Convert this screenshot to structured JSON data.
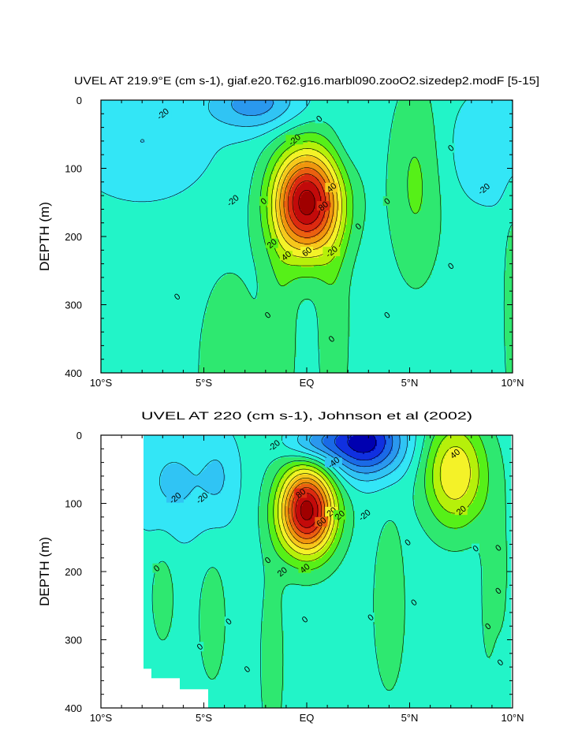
{
  "chart_data": [
    {
      "type": "contour",
      "title": "UVEL AT 219.9°E (cm s-1), giaf.e20.T62.g16.marbl090.zooO2.sizedep2.modF [5-15]",
      "ylabel": "DEPTH (m)",
      "xlabel": "",
      "x_ticks": [
        "10°S",
        "5°S",
        "EQ",
        "5°N",
        "10°N"
      ],
      "x_tick_values": [
        -10,
        -5,
        0,
        5,
        10
      ],
      "y_ticks": [
        "0",
        "100",
        "200",
        "300",
        "400"
      ],
      "y_tick_values": [
        0,
        100,
        200,
        300,
        400
      ],
      "xlim": [
        -10,
        10
      ],
      "ylim": [
        0,
        400
      ],
      "contour_interval": 10,
      "color_levels": [
        -60,
        -50,
        -40,
        -30,
        -20,
        -10,
        0,
        10,
        20,
        30,
        40,
        50,
        60,
        70,
        80,
        90
      ],
      "features": [
        {
          "name": "background flow",
          "value": -5
        },
        {
          "name": "equatorial undercurrent core",
          "lat": 0,
          "depth": 150,
          "value": 95
        },
        {
          "name": "surface westward jet",
          "lat": -2.5,
          "depth": 5,
          "value": -35
        },
        {
          "name": "eastward band 5N",
          "lat": 5.3,
          "depth": 120,
          "value": 12
        },
        {
          "name": "westward region south",
          "lat": -8,
          "depth": 60,
          "value": -18
        },
        {
          "name": "westward region north",
          "lat": 9,
          "depth": 80,
          "value": -18
        },
        {
          "name": "deep eastward tongue south",
          "lat": -4,
          "depth": 380,
          "value": 8
        },
        {
          "name": "deep eastward south of equator",
          "lat": -1.5,
          "depth": 330,
          "value": 8
        },
        {
          "name": "deep eastward north of equator",
          "lat": 1.5,
          "depth": 330,
          "value": 8
        },
        {
          "name": "weak eastward strip 10N",
          "lat": 10,
          "depth": 300,
          "value": 3
        }
      ],
      "contour_labels": [
        {
          "text": "-20",
          "lat": -7.0,
          "depth": 20
        },
        {
          "text": "-20",
          "lat": -3.6,
          "depth": 147
        },
        {
          "text": "-20",
          "lat": 8.6,
          "depth": 130
        },
        {
          "text": "-20",
          "lat": 1.2,
          "depth": 222
        },
        {
          "text": "-20",
          "lat": -0.6,
          "depth": 58
        },
        {
          "text": "0",
          "lat": 0.6,
          "depth": 27
        },
        {
          "text": "0",
          "lat": -2.1,
          "depth": 148
        },
        {
          "text": "0",
          "lat": 2.5,
          "depth": 185
        },
        {
          "text": "0",
          "lat": 3.9,
          "depth": 148
        },
        {
          "text": "0",
          "lat": 7.0,
          "depth": 70
        },
        {
          "text": "0",
          "lat": 7.0,
          "depth": 243
        },
        {
          "text": "0",
          "lat": -6.3,
          "depth": 288
        },
        {
          "text": "0",
          "lat": -1.9,
          "depth": 315
        },
        {
          "text": "0",
          "lat": 3.9,
          "depth": 315
        },
        {
          "text": "0",
          "lat": 1.2,
          "depth": 350
        },
        {
          "text": "20",
          "lat": -1.7,
          "depth": 210
        },
        {
          "text": "40",
          "lat": 1.2,
          "depth": 128
        },
        {
          "text": "40",
          "lat": -1.0,
          "depth": 228
        },
        {
          "text": "60",
          "lat": 0.0,
          "depth": 222
        },
        {
          "text": "80",
          "lat": 0.8,
          "depth": 155
        }
      ]
    },
    {
      "type": "contour",
      "title": "UVEL AT 220 (cm s-1), Johnson et al (2002)",
      "ylabel": "DEPTH (m)",
      "xlabel": "",
      "x_ticks": [
        "10°S",
        "5°S",
        "EQ",
        "5°N",
        "10°N"
      ],
      "x_tick_values": [
        -10,
        -5,
        0,
        5,
        10
      ],
      "y_ticks": [
        "0",
        "100",
        "200",
        "300",
        "400"
      ],
      "y_tick_values": [
        0,
        100,
        200,
        300,
        400
      ],
      "xlim": [
        -10,
        10
      ],
      "ylim": [
        0,
        400
      ],
      "contour_interval": 10,
      "color_levels": [
        -60,
        -50,
        -40,
        -30,
        -20,
        -10,
        0,
        10,
        20,
        30,
        40,
        50,
        60,
        70,
        80,
        90
      ],
      "data_coverage": {
        "lat_min": -8,
        "lat_max": 9.8,
        "note": "no data (white) in lower-left deep region"
      },
      "features": [
        {
          "name": "background flow",
          "value": -5
        },
        {
          "name": "equatorial undercurrent core",
          "lat": 0,
          "depth": 110,
          "value": 95
        },
        {
          "name": "surface westward jet",
          "lat": 2.8,
          "depth": 10,
          "value": -65
        },
        {
          "name": "northern eastward jet",
          "lat": 7.2,
          "depth": 60,
          "value": 40
        },
        {
          "name": "westward region south",
          "lat": -6.5,
          "depth": 70,
          "value": -20
        },
        {
          "name": "eastward tongue 4N",
          "lat": 4.0,
          "depth": 250,
          "value": 8
        },
        {
          "name": "eastward tongue 5S",
          "lat": -4.6,
          "depth": 270,
          "value": 6
        }
      ],
      "contour_labels": [
        {
          "text": "-20",
          "lat": -1.6,
          "depth": 15
        },
        {
          "text": "-40",
          "lat": 1.3,
          "depth": 40
        },
        {
          "text": "-20",
          "lat": -6.4,
          "depth": 92
        },
        {
          "text": "-20",
          "lat": -5.1,
          "depth": 92
        },
        {
          "text": "-20",
          "lat": 2.8,
          "depth": 117
        },
        {
          "text": "20",
          "lat": 7.5,
          "depth": 110
        },
        {
          "text": "40",
          "lat": 7.2,
          "depth": 27
        },
        {
          "text": "80",
          "lat": -0.3,
          "depth": 85
        },
        {
          "text": "60",
          "lat": 0.7,
          "depth": 127
        },
        {
          "text": "20",
          "lat": 1.2,
          "depth": 112
        },
        {
          "text": "20",
          "lat": 1.6,
          "depth": 117
        },
        {
          "text": "40",
          "lat": -0.1,
          "depth": 195
        },
        {
          "text": "20",
          "lat": -1.2,
          "depth": 200
        },
        {
          "text": "0",
          "lat": -7.3,
          "depth": 195
        },
        {
          "text": "0",
          "lat": -1.9,
          "depth": 183
        },
        {
          "text": "0",
          "lat": 4.9,
          "depth": 157
        },
        {
          "text": "0",
          "lat": 8.2,
          "depth": 166
        },
        {
          "text": "0",
          "lat": 9.3,
          "depth": 165
        },
        {
          "text": "0",
          "lat": 9.3,
          "depth": 228
        },
        {
          "text": "0",
          "lat": 5.2,
          "depth": 245
        },
        {
          "text": "0",
          "lat": -3.8,
          "depth": 273
        },
        {
          "text": "0",
          "lat": 3.1,
          "depth": 267
        },
        {
          "text": "0",
          "lat": -0.1,
          "depth": 270
        },
        {
          "text": "0",
          "lat": 8.8,
          "depth": 280
        },
        {
          "text": "0",
          "lat": -5.2,
          "depth": 310
        },
        {
          "text": "0",
          "lat": -2.9,
          "depth": 343
        },
        {
          "text": "0",
          "lat": 9.4,
          "depth": 333
        }
      ]
    }
  ]
}
